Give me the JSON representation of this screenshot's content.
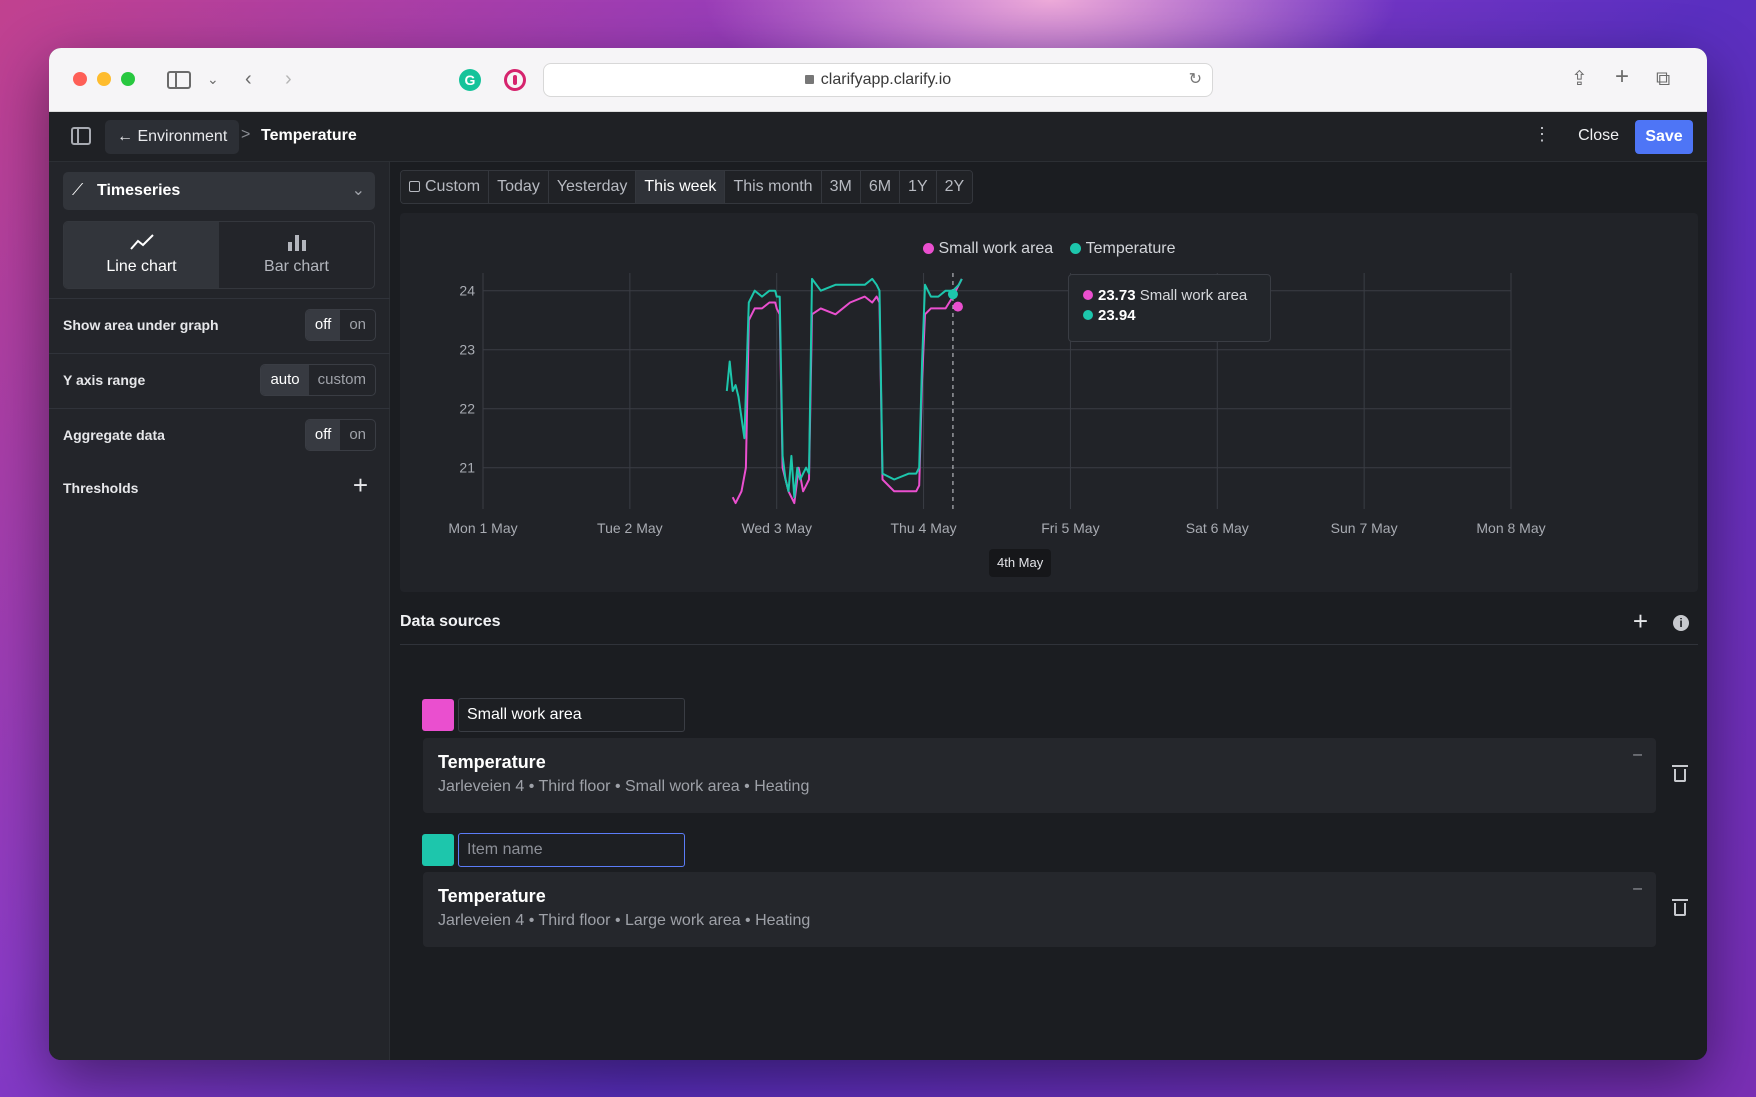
{
  "browser": {
    "url": "clarifyapp.clarify.io"
  },
  "header": {
    "back_label": "← Environment",
    "separator": ">",
    "current": "Temperature",
    "close_label": "Close",
    "save_label": "Save"
  },
  "left_panel": {
    "visualization": "Timeseries",
    "chart_types": [
      {
        "label": "Line chart",
        "icon": "line-chart-icon",
        "active": true
      },
      {
        "label": "Bar chart",
        "icon": "bar-chart-icon",
        "active": false
      }
    ],
    "settings": {
      "area": {
        "label": "Show area under graph",
        "off": "off",
        "on": "on",
        "value": "off"
      },
      "yaxis": {
        "label": "Y axis range",
        "auto": "auto",
        "custom": "custom",
        "value": "auto"
      },
      "aggregate": {
        "label": "Aggregate data",
        "off": "off",
        "on": "on",
        "value": "off"
      },
      "thresholds": {
        "label": "Thresholds",
        "add": "+"
      }
    }
  },
  "range_bar": {
    "items": [
      "Custom",
      "Today",
      "Yesterday",
      "This week",
      "This month",
      "3M",
      "6M",
      "1Y",
      "2Y"
    ],
    "active": "This week"
  },
  "colors": {
    "pink": "#ea4fcf",
    "teal": "#1dc6ac",
    "accent": "#4e75f6"
  },
  "chart_data": {
    "type": "line",
    "legend": [
      {
        "name": "Small work area",
        "color": "#ea4fcf"
      },
      {
        "name": "Temperature",
        "color": "#1dc6ac"
      }
    ],
    "x_ticks": [
      "Mon 1 May",
      "Tue 2 May",
      "Wed 3 May",
      "Thu 4 May",
      "Fri 5 May",
      "Sat 6 May",
      "Sun 7 May",
      "Mon 8 May"
    ],
    "y_ticks": [
      21,
      22,
      23,
      24
    ],
    "ylim": [
      20.3,
      24.3
    ],
    "series": [
      {
        "name": "Small work area",
        "color": "#ea4fcf",
        "points": [
          [
            1.7,
            20.5
          ],
          [
            1.72,
            20.4
          ],
          [
            1.76,
            20.6
          ],
          [
            1.79,
            21.0
          ],
          [
            1.81,
            23.5
          ],
          [
            1.85,
            23.7
          ],
          [
            1.9,
            23.7
          ],
          [
            1.95,
            23.8
          ],
          [
            1.99,
            23.8
          ],
          [
            2.0,
            23.7
          ],
          [
            2.02,
            23.6
          ],
          [
            2.04,
            21.0
          ],
          [
            2.08,
            20.6
          ],
          [
            2.12,
            20.4
          ],
          [
            2.15,
            21.0
          ],
          [
            2.18,
            20.6
          ],
          [
            2.2,
            20.7
          ],
          [
            2.22,
            20.8
          ],
          [
            2.24,
            23.6
          ],
          [
            2.3,
            23.7
          ],
          [
            2.4,
            23.6
          ],
          [
            2.5,
            23.8
          ],
          [
            2.6,
            23.9
          ],
          [
            2.65,
            23.8
          ],
          [
            2.68,
            23.9
          ],
          [
            2.7,
            23.8
          ],
          [
            2.72,
            20.8
          ],
          [
            2.8,
            20.6
          ],
          [
            2.9,
            20.6
          ],
          [
            2.95,
            20.6
          ],
          [
            2.97,
            20.7
          ],
          [
            2.99,
            22.5
          ],
          [
            3.01,
            23.6
          ],
          [
            3.05,
            23.7
          ],
          [
            3.1,
            23.7
          ],
          [
            3.15,
            23.7
          ],
          [
            3.2,
            23.9
          ],
          [
            3.24,
            24.1
          ],
          [
            3.26,
            24.2
          ]
        ]
      },
      {
        "name": "Temperature",
        "color": "#1dc6ac",
        "points": [
          [
            1.66,
            22.3
          ],
          [
            1.68,
            22.8
          ],
          [
            1.7,
            22.3
          ],
          [
            1.72,
            22.4
          ],
          [
            1.74,
            22.2
          ],
          [
            1.78,
            21.5
          ],
          [
            1.81,
            23.8
          ],
          [
            1.85,
            24.0
          ],
          [
            1.9,
            23.9
          ],
          [
            1.95,
            24.0
          ],
          [
            1.99,
            24.0
          ],
          [
            2.0,
            23.9
          ],
          [
            2.02,
            23.9
          ],
          [
            2.04,
            21.2
          ],
          [
            2.06,
            20.8
          ],
          [
            2.08,
            20.6
          ],
          [
            2.1,
            21.2
          ],
          [
            2.12,
            20.5
          ],
          [
            2.14,
            21.0
          ],
          [
            2.16,
            20.8
          ],
          [
            2.18,
            20.9
          ],
          [
            2.2,
            21.0
          ],
          [
            2.22,
            20.9
          ],
          [
            2.24,
            24.2
          ],
          [
            2.3,
            24.0
          ],
          [
            2.4,
            24.1
          ],
          [
            2.5,
            24.1
          ],
          [
            2.6,
            24.1
          ],
          [
            2.65,
            24.2
          ],
          [
            2.68,
            24.1
          ],
          [
            2.7,
            24.0
          ],
          [
            2.72,
            20.9
          ],
          [
            2.8,
            20.8
          ],
          [
            2.9,
            20.9
          ],
          [
            2.95,
            20.9
          ],
          [
            2.97,
            21.0
          ],
          [
            2.99,
            22.8
          ],
          [
            3.01,
            24.1
          ],
          [
            3.05,
            23.9
          ],
          [
            3.1,
            23.9
          ],
          [
            3.15,
            24.0
          ],
          [
            3.2,
            24.0
          ],
          [
            3.24,
            24.1
          ],
          [
            3.26,
            24.2
          ]
        ]
      }
    ],
    "hover": {
      "x_label": "4th May",
      "x": 3.2,
      "values": [
        {
          "series": "Small work area",
          "value": "23.73",
          "label": "Small work area"
        },
        {
          "series": "Temperature",
          "value": "23.94",
          "label": ""
        }
      ]
    }
  },
  "data_sources": {
    "title": "Data sources",
    "add": "+",
    "info": "i",
    "items": [
      {
        "name": "Small work area",
        "placeholder": "",
        "color": "#ea4fcf",
        "title": "Temperature",
        "path": "Jarleveien 4 • Third floor • Small work area • Heating",
        "collapse": "–"
      },
      {
        "name": "",
        "placeholder": "Item name",
        "color": "#1dc6ac",
        "title": "Temperature",
        "path": "Jarleveien 4 • Third floor • Large work area • Heating",
        "collapse": "–"
      }
    ]
  }
}
